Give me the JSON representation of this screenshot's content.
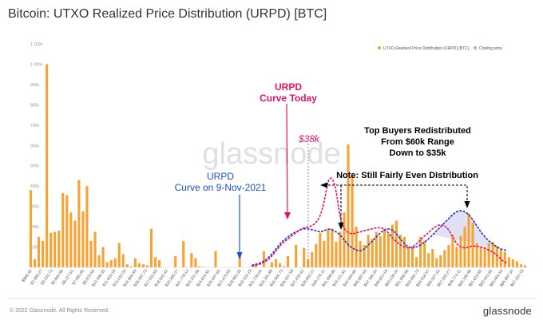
{
  "title": "Bitcoin: UTXO Realized Price Distribution (URPD) [BTC]",
  "footer": {
    "copyright": "© 2022 Glassnode. All Rights Reserved.",
    "brand": "glassnode"
  },
  "colors": {
    "bars": "#f7a233",
    "today_curve": "#e8106f",
    "nov_curve": "#2431c9",
    "annotation_urpd_today": "#e8106f",
    "annotation_nov": "#1a4fd6",
    "annotation_black": "#000000",
    "fill_between": "#c9c9ef"
  },
  "chart_data": {
    "type": "bar",
    "legend": [
      {
        "name": "UTXO Realized Price Distribution (URPD) [BTC]",
        "color": "#f7a233"
      },
      {
        "name": "Closing price",
        "color": "#b8b8e6"
      }
    ],
    "legend_position": "top-right",
    "ylim": [
      0,
      1100000
    ],
    "y_ticks": [
      "100k",
      "200k",
      "300k",
      "400k",
      "500k",
      "600k",
      "700k",
      "800k",
      "900k",
      "1 000k",
      "1 100k"
    ],
    "y_tick_values": [
      100000,
      200000,
      300000,
      400000,
      500000,
      600000,
      700000,
      800000,
      900000,
      1000000,
      1100000
    ],
    "x_tick_labels": [
      "$968.42",
      "$2,069.27",
      "$3,233.72",
      "$4,864.96",
      "$6,117.61",
      "$7,550.65",
      "$8,973.50",
      "$10,396.35",
      "$11,819.19",
      "$13,242.04",
      "$14,664.89",
      "$16,087.73",
      "$17,510.58",
      "$18,933.42",
      "$20,356.27",
      "$21,779.12",
      "$23,201.96",
      "$24,624.81",
      "$26,047.65",
      "$27,470.50",
      "$28,893.35",
      "$30,316.19",
      "$31,739.04",
      "$33,161.88",
      "$34,584.73",
      "$36,007.58",
      "$37,430.42",
      "$38,853.27",
      "$40,276.11",
      "$41,698.96",
      "$43,121.81",
      "$44,544.65",
      "$45,967.50",
      "$47,390.34",
      "$48,813.19",
      "$50,236.04",
      "$51,658.88",
      "$53,081.73",
      "$54,504.57",
      "$55,927.42",
      "$57,350.27",
      "$58,773.11",
      "$60,195.96",
      "$61,618.80",
      "$63,041.65",
      "$64,464.50",
      "$65,887.34",
      "$67,310.19"
    ],
    "bars": [
      380000,
      40000,
      150000,
      130000,
      1000000,
      170000,
      175000,
      180000,
      365000,
      355000,
      270000,
      230000,
      430000,
      275000,
      400000,
      130000,
      175000,
      60000,
      100000,
      25000,
      35000,
      45000,
      120000,
      65000,
      15000,
      5000,
      45000,
      20000,
      15000,
      10000,
      190000,
      50000,
      35000,
      0,
      0,
      0,
      55000,
      0,
      130000,
      0,
      70000,
      45000,
      5000,
      2000,
      0,
      0,
      80000,
      0,
      0,
      0,
      0,
      0,
      55000,
      0,
      0,
      0,
      15000,
      0,
      80000,
      0,
      25000,
      40000,
      20000,
      5000,
      55000,
      0,
      110000,
      0,
      95000,
      40000,
      75000,
      115000,
      170000,
      130000,
      185000,
      190000,
      125000,
      175000,
      270000,
      605000,
      450000,
      200000,
      130000,
      110000,
      160000,
      140000,
      175000,
      155000,
      190000,
      165000,
      210000,
      230000,
      160000,
      150000,
      100000,
      95000,
      50000,
      150000,
      130000,
      70000,
      90000,
      45000,
      60000,
      85000,
      110000,
      160000,
      100000,
      155000,
      200000,
      265000,
      220000,
      120000,
      105000,
      100000,
      120000,
      125000,
      105000,
      90000,
      75000,
      50000,
      40000,
      30000,
      15000,
      10000
    ],
    "series": [
      {
        "name": "URPD Curve Today",
        "values": [
          0,
          0,
          0,
          0,
          0,
          0,
          0,
          0,
          0,
          0,
          0,
          0,
          0,
          0,
          0,
          0,
          0,
          0,
          0,
          0,
          0,
          0,
          0,
          0,
          0,
          0,
          0,
          0,
          0,
          0,
          0,
          0,
          0,
          0,
          0,
          0,
          0,
          0,
          0,
          0,
          0,
          0,
          0,
          0,
          0,
          0,
          0,
          0,
          0,
          0,
          0,
          0,
          0,
          0,
          0,
          5000,
          10000,
          15000,
          25000,
          35000,
          55000,
          80000,
          105000,
          125000,
          140000,
          155000,
          170000,
          185000,
          195000,
          200000,
          205000,
          220000,
          250000,
          320000,
          430000,
          445000,
          380000,
          240000,
          190000,
          170000,
          165000,
          170000,
          175000,
          180000,
          185000,
          190000,
          195000,
          195000,
          190000,
          170000,
          145000,
          125000,
          110000,
          100000,
          95000,
          100000,
          115000,
          135000,
          155000,
          170000,
          190000,
          205000,
          210000,
          205000,
          185000,
          150000,
          115000,
          100000,
          95000,
          100000,
          105000,
          105000,
          100000,
          95000,
          85000,
          75000,
          60000,
          40000,
          25000,
          15000
        ]
      },
      {
        "name": "URPD Curve on 9-Nov-2021",
        "values": [
          0,
          0,
          0,
          0,
          0,
          0,
          0,
          0,
          0,
          0,
          0,
          0,
          0,
          0,
          0,
          0,
          0,
          0,
          0,
          0,
          0,
          0,
          0,
          0,
          0,
          0,
          0,
          0,
          0,
          0,
          0,
          0,
          0,
          0,
          0,
          0,
          0,
          0,
          0,
          0,
          0,
          0,
          0,
          0,
          0,
          0,
          0,
          0,
          0,
          0,
          0,
          0,
          0,
          0,
          0,
          10000,
          15000,
          20000,
          30000,
          45000,
          65000,
          90000,
          115000,
          135000,
          150000,
          165000,
          175000,
          185000,
          190000,
          190000,
          185000,
          180000,
          175000,
          180000,
          190000,
          185000,
          175000,
          160000,
          135000,
          110000,
          95000,
          85000,
          80000,
          90000,
          110000,
          130000,
          150000,
          170000,
          185000,
          190000,
          185000,
          165000,
          140000,
          115000,
          100000,
          95000,
          100000,
          110000,
          125000,
          140000,
          160000,
          180000,
          200000,
          220000,
          240000,
          260000,
          275000,
          280000,
          275000,
          260000,
          235000,
          205000,
          175000,
          150000,
          130000,
          115000,
          100000,
          90000,
          85000,
          80000
        ]
      }
    ],
    "annotations": [
      {
        "text": "URPD",
        "text2": "Curve Today"
      },
      {
        "text": "$38k"
      },
      {
        "text": "URPD",
        "text2": "Curve on 9-Nov-2021"
      },
      {
        "text": "Top Buyers Redistributed",
        "text2": "From $60k Range",
        "text3": "Down to $35k"
      },
      {
        "text": "Note: Still Fairly Even DIstribution"
      }
    ],
    "watermark": "glassnode",
    "grid": false
  }
}
